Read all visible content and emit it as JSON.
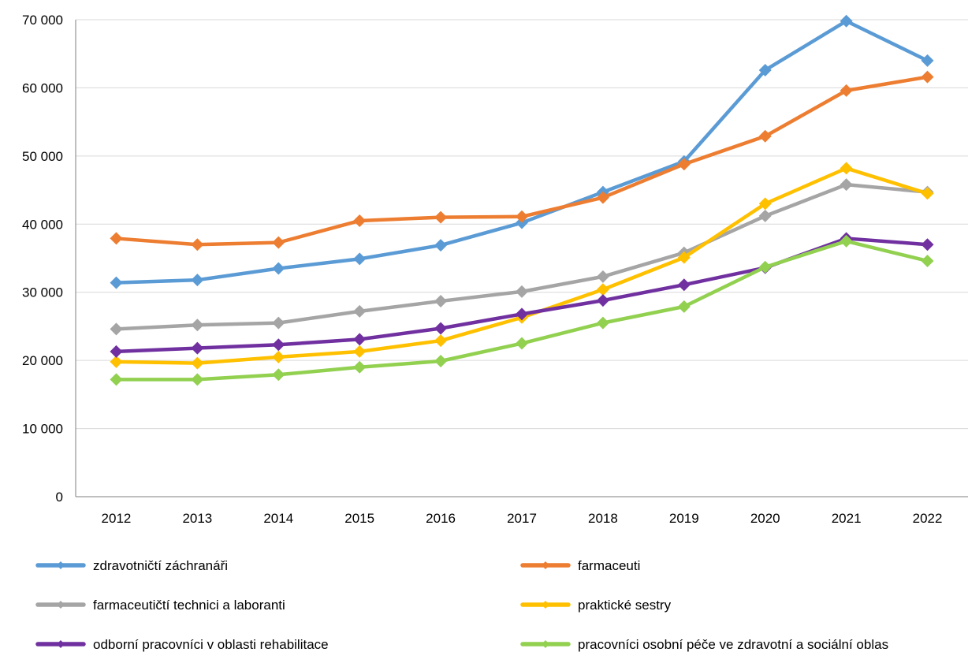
{
  "chart_data": {
    "type": "line",
    "title": "",
    "xlabel": "",
    "ylabel": "",
    "categories": [
      "2012",
      "2013",
      "2014",
      "2015",
      "2016",
      "2017",
      "2018",
      "2019",
      "2020",
      "2021",
      "2022"
    ],
    "ylim": [
      0,
      70000
    ],
    "y_ticks": [
      "0",
      "10 000",
      "20 000",
      "30 000",
      "40 000",
      "50 000",
      "60 000",
      "70 000"
    ],
    "grid": "horizontal",
    "legend_position": "bottom",
    "series": [
      {
        "name": "zdravotničtí záchranáři",
        "color": "#5b9bd5",
        "values": [
          31400,
          31800,
          33500,
          34900,
          36900,
          40200,
          44700,
          49200,
          62600,
          69800,
          64000
        ]
      },
      {
        "name": "farmaceuti",
        "color": "#ed7d31",
        "values": [
          37900,
          37000,
          37300,
          40500,
          41000,
          41100,
          43900,
          48800,
          52900,
          59600,
          61600
        ]
      },
      {
        "name": "farmaceutičtí technici a laboranti",
        "color": "#a5a5a5",
        "values": [
          24600,
          25200,
          25500,
          27200,
          28700,
          30100,
          32300,
          35800,
          41200,
          45800,
          44700
        ]
      },
      {
        "name": "praktické sestry",
        "color": "#ffc000",
        "values": [
          19800,
          19600,
          20500,
          21300,
          22900,
          26300,
          30400,
          35100,
          43000,
          48200,
          44500
        ]
      },
      {
        "name": "odborní pracovníci v oblasti rehabilitace",
        "color": "#7030a0",
        "values": [
          21300,
          21800,
          22300,
          23100,
          24700,
          26800,
          28800,
          31100,
          33600,
          37900,
          37000
        ]
      },
      {
        "name": "pracovníci osobní péče ve zdravotní a sociální oblas",
        "color": "#92d050",
        "values": [
          17200,
          17200,
          17900,
          19000,
          19900,
          22500,
          25500,
          27900,
          33700,
          37500,
          34600
        ]
      }
    ]
  }
}
